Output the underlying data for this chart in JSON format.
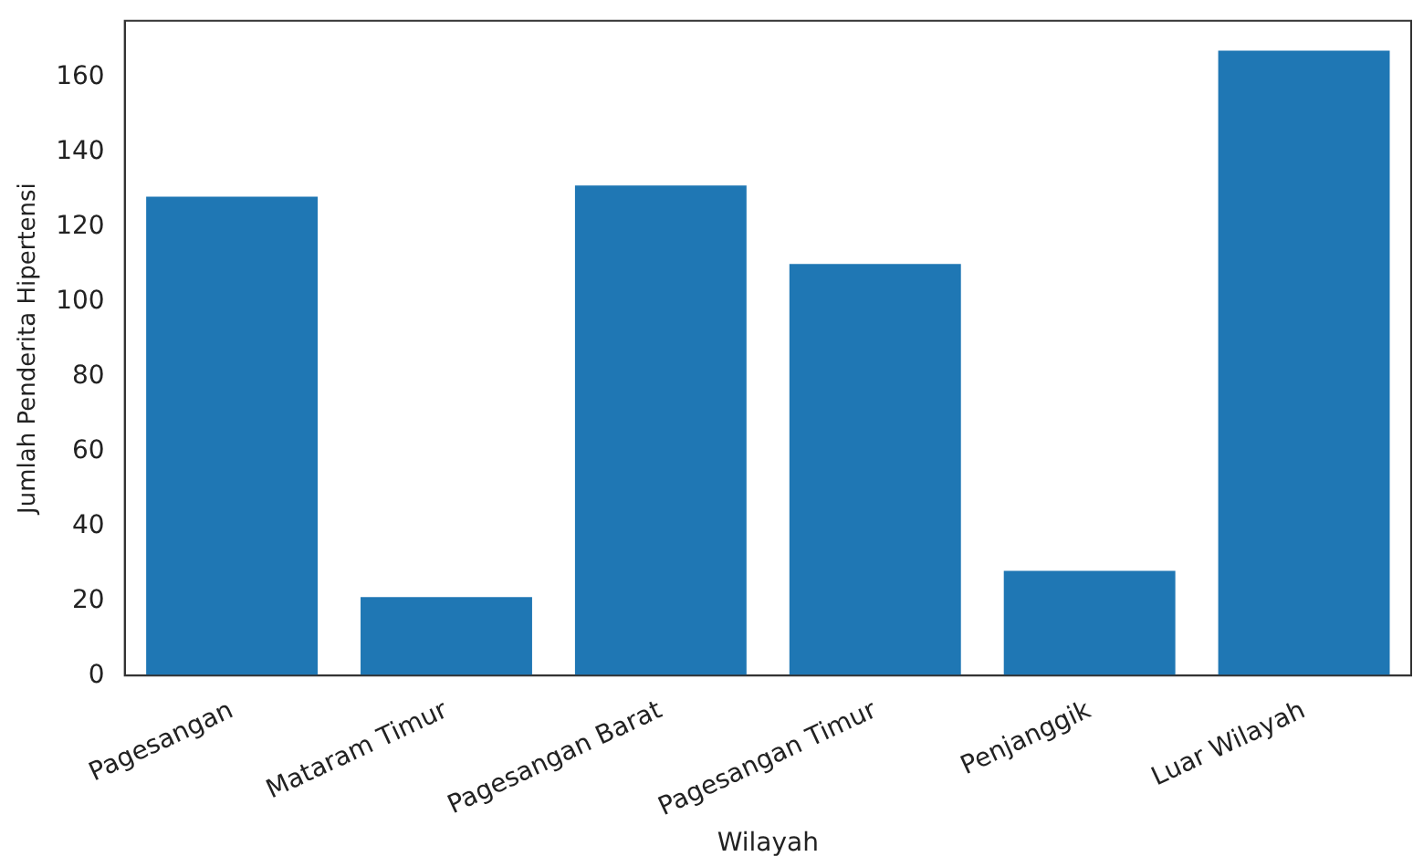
{
  "chart_data": {
    "type": "bar",
    "xlabel": "Wilayah",
    "ylabel": "Jumlah Penderita Hipertensi",
    "categories": [
      "Pagesangan",
      "Mataram Timur",
      "Pagesangan Barat",
      "Pagesangan Timur",
      "Penjanggik",
      "Luar Wilayah"
    ],
    "values": [
      128,
      21,
      131,
      110,
      28,
      167
    ],
    "color": "#1f77b4",
    "ylim": [
      0,
      175
    ],
    "yticks": [
      0,
      20,
      40,
      60,
      80,
      100,
      120,
      140,
      160
    ],
    "grid": false,
    "legend": false
  }
}
